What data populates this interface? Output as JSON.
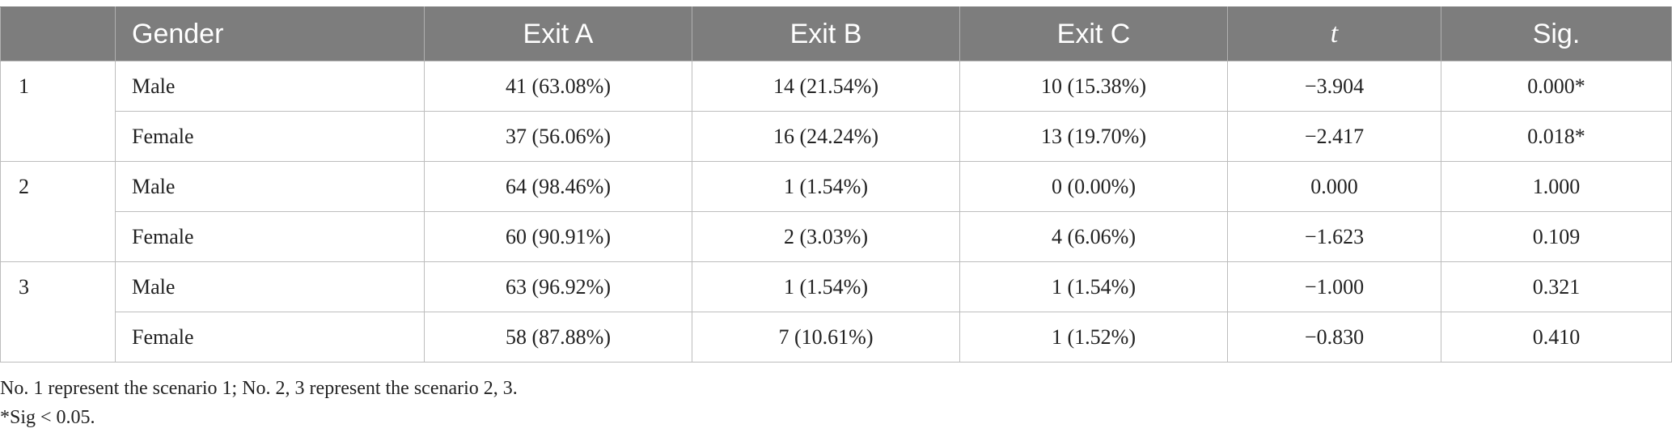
{
  "table": {
    "headers": [
      "",
      "Gender",
      "Exit A",
      "Exit B",
      "Exit C",
      "t",
      "Sig."
    ],
    "rows": [
      {
        "no": "1",
        "gender": "Male",
        "exit_a": "41 (63.08%)",
        "exit_b": "14 (21.54%)",
        "exit_c": "10 (15.38%)",
        "t": "−3.904",
        "sig": "0.000*"
      },
      {
        "no": "",
        "gender": "Female",
        "exit_a": "37 (56.06%)",
        "exit_b": "16 (24.24%)",
        "exit_c": "13 (19.70%)",
        "t": "−2.417",
        "sig": "0.018*"
      },
      {
        "no": "2",
        "gender": "Male",
        "exit_a": "64 (98.46%)",
        "exit_b": "1 (1.54%)",
        "exit_c": "0 (0.00%)",
        "t": "0.000",
        "sig": "1.000"
      },
      {
        "no": "",
        "gender": "Female",
        "exit_a": "60 (90.91%)",
        "exit_b": "2 (3.03%)",
        "exit_c": "4 (6.06%)",
        "t": "−1.623",
        "sig": "0.109"
      },
      {
        "no": "3",
        "gender": "Male",
        "exit_a": "63 (96.92%)",
        "exit_b": "1 (1.54%)",
        "exit_c": "1 (1.54%)",
        "t": "−1.000",
        "sig": "0.321"
      },
      {
        "no": "",
        "gender": "Female",
        "exit_a": "58 (87.88%)",
        "exit_b": "7 (10.61%)",
        "exit_c": "1 (1.52%)",
        "t": "−0.830",
        "sig": "0.410"
      }
    ]
  },
  "notes": {
    "line1": "No. 1 represent the scenario 1; No. 2, 3 represent the scenario 2, 3.",
    "line2": "*Sig < 0.05."
  },
  "colors": {
    "header_bg": "#7d7d7d",
    "header_text": "#ffffff",
    "grid": "#bdbdbd"
  }
}
